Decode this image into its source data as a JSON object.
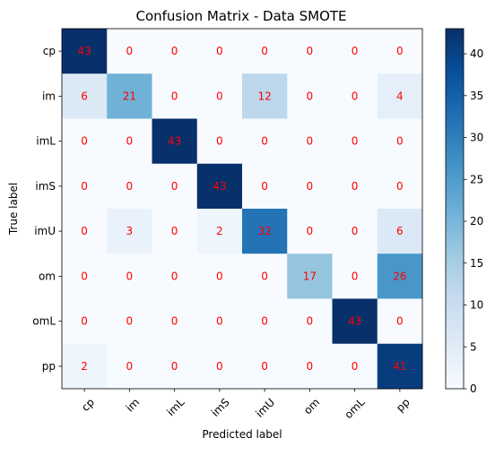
{
  "chart_data": {
    "type": "heatmap",
    "title": "Confusion Matrix - Data SMOTE",
    "xlabel": "Predicted label",
    "ylabel": "True label",
    "row_labels": [
      "cp",
      "im",
      "imL",
      "imS",
      "imU",
      "om",
      "omL",
      "pp"
    ],
    "col_labels": [
      "cp",
      "im",
      "imL",
      "imS",
      "imU",
      "om",
      "omL",
      "pp"
    ],
    "values": [
      [
        43,
        0,
        0,
        0,
        0,
        0,
        0,
        0
      ],
      [
        6,
        21,
        0,
        0,
        12,
        0,
        0,
        4
      ],
      [
        0,
        0,
        43,
        0,
        0,
        0,
        0,
        0
      ],
      [
        0,
        0,
        0,
        43,
        0,
        0,
        0,
        0
      ],
      [
        0,
        3,
        0,
        2,
        32,
        0,
        0,
        6
      ],
      [
        0,
        0,
        0,
        0,
        0,
        17,
        0,
        26
      ],
      [
        0,
        0,
        0,
        0,
        0,
        0,
        43,
        0
      ],
      [
        2,
        0,
        0,
        0,
        0,
        0,
        0,
        41
      ]
    ],
    "colormap": "Blues",
    "value_range": [
      0,
      43
    ],
    "colorbar_ticks": [
      0,
      5,
      10,
      15,
      20,
      25,
      30,
      35,
      40
    ],
    "colorbar_tick_labels": [
      "0",
      "5",
      "10",
      "15",
      "20",
      "25",
      "30",
      "35",
      "40"
    ],
    "annotation_color": "#ff0000",
    "x_tick_rotation_deg": 45,
    "grid": false
  }
}
